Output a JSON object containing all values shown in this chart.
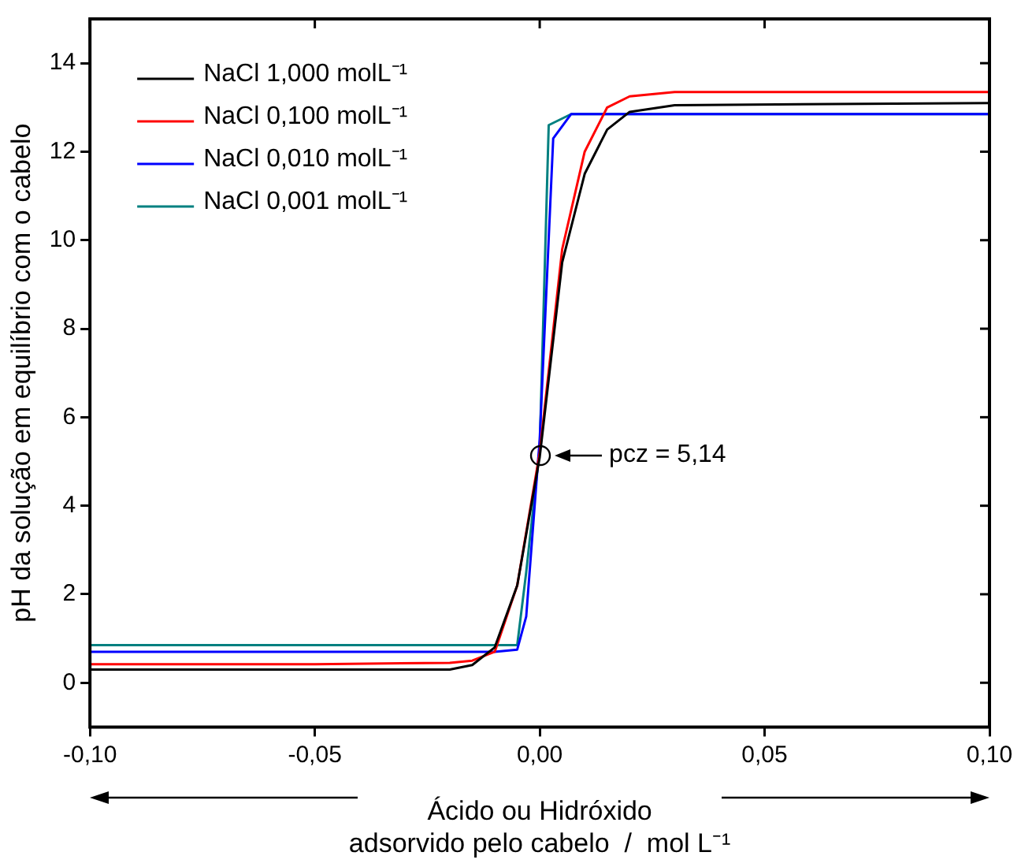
{
  "chart_data": {
    "type": "line",
    "xlabel": "Ácido ou Hidróxido\nadsorvido pelo cabelo  /  mol L⁻¹",
    "ylabel": "pH da solução em equilíbrio com o cabelo",
    "xlim": [
      -0.1,
      0.1
    ],
    "xticks": [
      {
        "value": -0.1,
        "label": "-0,10"
      },
      {
        "value": -0.05,
        "label": "-0,05"
      },
      {
        "value": 0,
        "label": "0,00"
      },
      {
        "value": 0.05,
        "label": "0,05"
      },
      {
        "value": 0.1,
        "label": "0,10"
      }
    ],
    "ylim": [
      -1,
      15
    ],
    "yticks": [
      0,
      2,
      4,
      6,
      8,
      10,
      12,
      14
    ],
    "grid": false,
    "legend": "top left",
    "marker": "none",
    "line_style": "solid",
    "annotations": [
      {
        "text": "pcz = 5,14",
        "x": 0,
        "y": 5.14
      }
    ],
    "series": [
      {
        "name": "NaCl 1,000 molL⁻¹",
        "color": "#000000",
        "x": [
          -0.1,
          -0.05,
          -0.02,
          -0.015,
          -0.01,
          -0.005,
          0,
          0.005,
          0.01,
          0.015,
          0.02,
          0.03,
          0.1
        ],
        "values": [
          0.3,
          0.3,
          0.3,
          0.4,
          0.8,
          2.2,
          5.1,
          9.5,
          11.5,
          12.5,
          12.9,
          13.05,
          13.1
        ]
      },
      {
        "name": "NaCl 0,100 molL⁻¹",
        "color": "#ff0000",
        "x": [
          -0.1,
          -0.05,
          -0.02,
          -0.015,
          -0.01,
          -0.005,
          0,
          0.005,
          0.01,
          0.015,
          0.02,
          0.03,
          0.1
        ],
        "values": [
          0.42,
          0.42,
          0.45,
          0.5,
          0.7,
          2.2,
          5.2,
          9.8,
          12.0,
          13.0,
          13.25,
          13.35,
          13.35
        ]
      },
      {
        "name": "NaCl 0,010 molL⁻¹",
        "color": "#0000ff",
        "x": [
          -0.1,
          -0.05,
          -0.01,
          -0.005,
          -0.003,
          0,
          0.003,
          0.007,
          0.1
        ],
        "values": [
          0.7,
          0.7,
          0.7,
          0.75,
          1.5,
          5.5,
          12.3,
          12.85,
          12.85
        ]
      },
      {
        "name": "NaCl 0,001 molL⁻¹",
        "color": "#008080",
        "x": [
          -0.1,
          -0.05,
          -0.01,
          -0.005,
          -0.003,
          0,
          0.002,
          0.007,
          0.1
        ],
        "values": [
          0.85,
          0.85,
          0.85,
          0.85,
          2.5,
          5.3,
          12.6,
          12.85,
          12.85
        ]
      }
    ]
  }
}
